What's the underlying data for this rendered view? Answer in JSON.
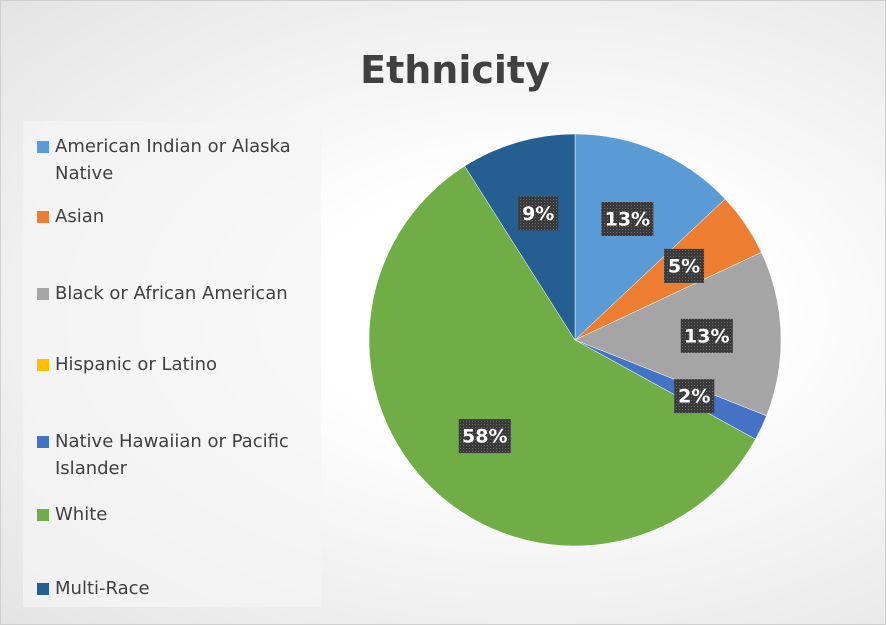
{
  "chart_data": {
    "type": "pie",
    "title": "Ethnicity",
    "categories": [
      "American Indian or Alaska Native",
      "Asian",
      "Black or African American",
      "Hispanic or Latino",
      "Native Hawaiian or Pacific Islander",
      "White",
      "Multi-Race"
    ],
    "values": [
      13,
      5,
      13,
      0,
      2,
      58,
      9
    ],
    "value_labels": [
      "13%",
      "5%",
      "13%",
      null,
      "2%",
      "58%",
      "9%"
    ],
    "colors": [
      "#5b9bd5",
      "#ed7d31",
      "#a5a5a5",
      "#ffc000",
      "#4472c4",
      "#70ad47",
      "#255e91"
    ],
    "legend": "left"
  }
}
